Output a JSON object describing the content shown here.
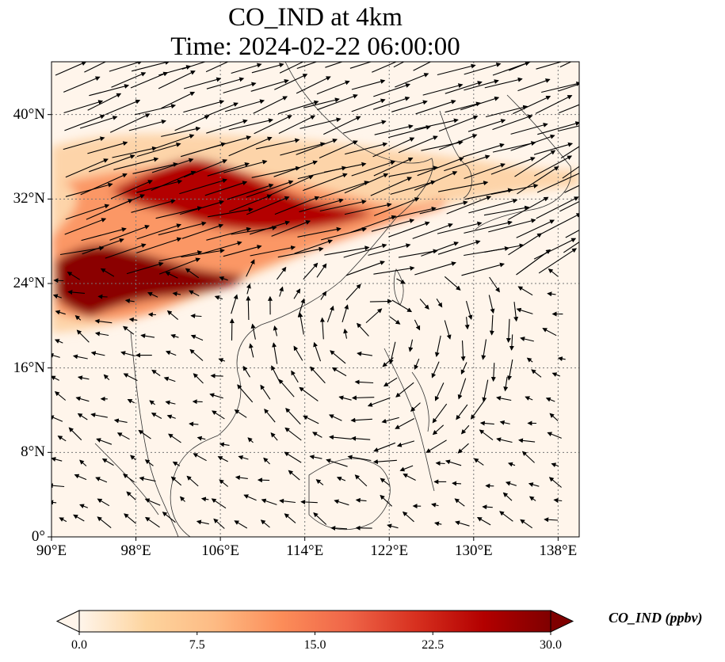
{
  "title": {
    "line1": "CO_IND at 4km",
    "line2": "Time: 2024-02-22 06:00:00"
  },
  "map": {
    "variable": "CO_IND",
    "level": "4km",
    "time": "2024-02-22 06:00:00",
    "lon_range": [
      90,
      140
    ],
    "lat_range": [
      0,
      45
    ],
    "lon_ticks": [
      {
        "value": 90,
        "label": "90°E"
      },
      {
        "value": 98,
        "label": "98°E"
      },
      {
        "value": 106,
        "label": "106°E"
      },
      {
        "value": 114,
        "label": "114°E"
      },
      {
        "value": 122,
        "label": "122°E"
      },
      {
        "value": 130,
        "label": "130°E"
      },
      {
        "value": 138,
        "label": "138°E"
      }
    ],
    "lat_ticks": [
      {
        "value": 0,
        "label": "0°"
      },
      {
        "value": 8,
        "label": "8°N"
      },
      {
        "value": 16,
        "label": "16°N"
      },
      {
        "value": 24,
        "label": "24°N"
      },
      {
        "value": 32,
        "label": "32°N"
      },
      {
        "value": 40,
        "label": "40°N"
      }
    ],
    "gridlines": true,
    "overlays": [
      "coastlines",
      "wind-vectors"
    ],
    "background_color": "#fff5eb"
  },
  "colorbar": {
    "title": "CO_IND (ppbv)",
    "min": 0.0,
    "max": 30.0,
    "extend": "both",
    "colormap": "OrRd",
    "ticks": [
      {
        "value": 0.0,
        "label": "0.0"
      },
      {
        "value": 7.5,
        "label": "7.5"
      },
      {
        "value": 15.0,
        "label": "15.0"
      },
      {
        "value": 22.5,
        "label": "22.5"
      },
      {
        "value": 30.0,
        "label": "30.0"
      }
    ],
    "colors": [
      "#fff5eb",
      "#fdd49e",
      "#fdbb84",
      "#fc8d59",
      "#ef6548",
      "#d7301f",
      "#b30000",
      "#7f0000"
    ]
  }
}
